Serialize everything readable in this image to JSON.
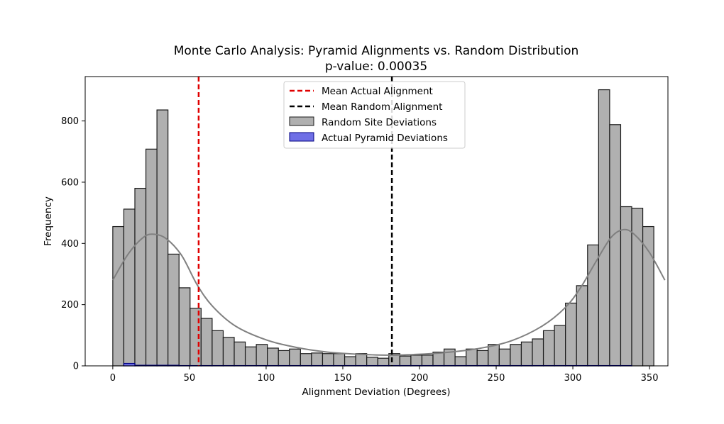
{
  "chart_data": {
    "type": "bar",
    "title": "Monte Carlo Analysis: Pyramid Alignments vs. Random Distribution",
    "subtitle": "p-value: 0.00035",
    "xlabel": "Alignment Deviation (Degrees)",
    "ylabel": "Frequency",
    "xlim": [
      -18,
      362
    ],
    "ylim": [
      0,
      945
    ],
    "xticks": [
      0,
      50,
      100,
      150,
      200,
      250,
      300,
      350
    ],
    "yticks": [
      0,
      200,
      400,
      600,
      800
    ],
    "bin_width": 7.2,
    "bins_start": 0,
    "legend_position": "top-center",
    "series": [
      {
        "name": "Random Site Deviations",
        "kind": "histogram",
        "color": "#b0b0b0",
        "edge_color": "#1a1a1a",
        "values": [
          455,
          512,
          580,
          708,
          836,
          365,
          255,
          188,
          155,
          115,
          93,
          78,
          62,
          70,
          58,
          50,
          55,
          40,
          42,
          40,
          40,
          30,
          40,
          28,
          25,
          40,
          32,
          35,
          35,
          45,
          55,
          30,
          55,
          50,
          70,
          55,
          70,
          78,
          88,
          115,
          132,
          205,
          262,
          395,
          902,
          788,
          520,
          515,
          455
        ]
      },
      {
        "name": "Actual Pyramid Deviations",
        "kind": "histogram",
        "color": "#6f6fe6",
        "edge_color": "#000080",
        "values": [
          0,
          8,
          2,
          2,
          2,
          2,
          1,
          1,
          1,
          1,
          1,
          1,
          1,
          1,
          1,
          1,
          1,
          1,
          1,
          1,
          1,
          1,
          1,
          1,
          1,
          1,
          1,
          1,
          1,
          1,
          1,
          1,
          1,
          1,
          1,
          1,
          1,
          1,
          1,
          1,
          1,
          1,
          1,
          1,
          1,
          1,
          1,
          0,
          0
        ]
      },
      {
        "name": "kde",
        "kind": "kde",
        "color": "#808080",
        "x": [
          0,
          10,
          20,
          27,
          35,
          45,
          55,
          65,
          80,
          100,
          120,
          140,
          160,
          180,
          200,
          220,
          240,
          260,
          280,
          295,
          305,
          315,
          325,
          333,
          340,
          350,
          360
        ],
        "y": [
          280,
          365,
          420,
          430,
          415,
          360,
          265,
          195,
          130,
          85,
          60,
          45,
          38,
          35,
          38,
          45,
          58,
          82,
          130,
          190,
          255,
          340,
          420,
          445,
          430,
          370,
          280
        ]
      }
    ],
    "reference_lines": [
      {
        "name": "Mean Actual Alignment",
        "x": 56,
        "color": "#e00000",
        "style": "dashed"
      },
      {
        "name": "Mean Random Alignment",
        "x": 182,
        "color": "#000000",
        "style": "dashed"
      }
    ]
  }
}
